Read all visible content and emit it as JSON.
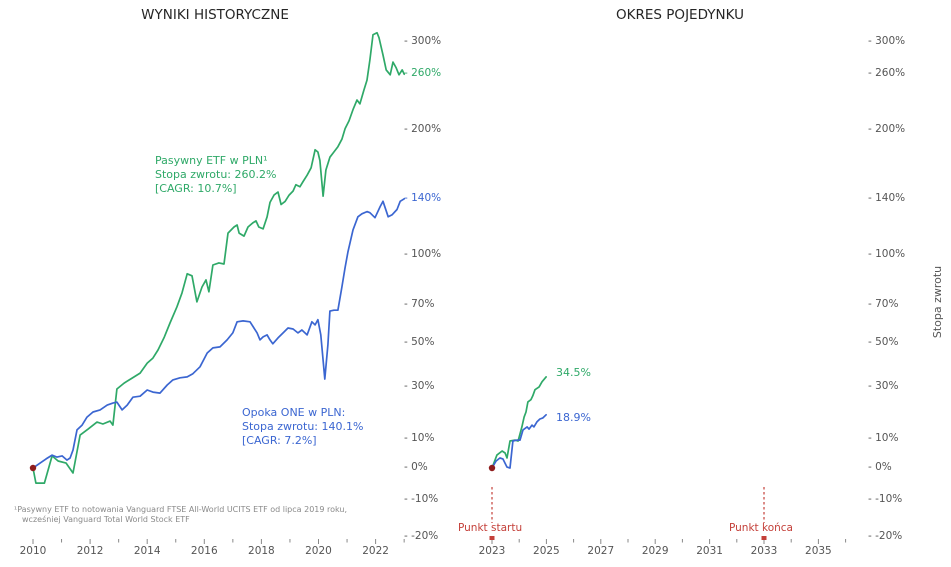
{
  "colors": {
    "green": "#2fa968",
    "blue": "#3b66d1",
    "red": "#c4403a",
    "dark_red_dot": "#8f1d1d",
    "tick_text": "#555555",
    "title_text": "#262626",
    "footnote_text": "#8a8a8a",
    "tick_mark": "#888888"
  },
  "right_axis_label": "Stopa zwrotu",
  "footnote": {
    "line1": "¹Pasywny ETF to notowania Vanguard FTSE All-World UCITS ETF od lipca 2019 roku,",
    "line2": "wcześniej Vanguard Total World Stock ETF"
  },
  "chart_data": [
    {
      "type": "line",
      "title": "WYNIKI HISTORYCZNE",
      "y_scale": "log(1+return)",
      "ylim_pct": [
        -20,
        320
      ],
      "x_major_ticks": [
        2010,
        2012,
        2014,
        2016,
        2018,
        2020,
        2022
      ],
      "x_minor_ticks": [
        2011,
        2013,
        2015,
        2017,
        2019,
        2021,
        2023
      ],
      "y_ticks": [
        {
          "pct": 300,
          "label": "300%",
          "color": "tick"
        },
        {
          "pct": 260,
          "label": "260%",
          "color": "green"
        },
        {
          "pct": 200,
          "label": "200%",
          "color": "tick"
        },
        {
          "pct": 140,
          "label": "140%",
          "color": "blue"
        },
        {
          "pct": 100,
          "label": "100%",
          "color": "tick"
        },
        {
          "pct": 70,
          "label": "70%",
          "color": "tick"
        },
        {
          "pct": 50,
          "label": "50%",
          "color": "tick"
        },
        {
          "pct": 30,
          "label": "30%",
          "color": "tick"
        },
        {
          "pct": 10,
          "label": "10%",
          "color": "tick"
        },
        {
          "pct": 0,
          "label": "0%",
          "color": "tick"
        },
        {
          "pct": -10,
          "label": "-10%",
          "color": "tick"
        },
        {
          "pct": -20,
          "label": "-20%",
          "color": "tick"
        }
      ],
      "start_marker": {
        "year": 2010.0,
        "pct": 0
      },
      "series": [
        {
          "name": "Pasywny ETF w PLN",
          "color": "green",
          "annotation": [
            "Pasywny ETF w PLN¹",
            "Stopa zwrotu: 260.2%",
            "[CAGR: 10.7%]"
          ],
          "total_return_pct": 260.2,
          "cagr_pct": 10.7,
          "points": [
            [
              2010.0,
              0
            ],
            [
              2010.1,
              -4.8
            ],
            [
              2010.4,
              -4.8
            ],
            [
              2010.67,
              4.0
            ],
            [
              2010.88,
              2.3
            ],
            [
              2011.16,
              1.6
            ],
            [
              2011.4,
              -1.6
            ],
            [
              2011.65,
              11.3
            ],
            [
              2011.93,
              13.5
            ],
            [
              2012.24,
              16.1
            ],
            [
              2012.45,
              15.4
            ],
            [
              2012.7,
              16.5
            ],
            [
              2012.8,
              15.0
            ],
            [
              2012.94,
              29.3
            ],
            [
              2013.19,
              31.8
            ],
            [
              2013.47,
              34.0
            ],
            [
              2013.75,
              36.2
            ],
            [
              2014.0,
              40.7
            ],
            [
              2014.2,
              43.0
            ],
            [
              2014.38,
              46.8
            ],
            [
              2014.6,
              53.1
            ],
            [
              2014.8,
              60.3
            ],
            [
              2015.04,
              68.9
            ],
            [
              2015.22,
              76.8
            ],
            [
              2015.4,
              88.1
            ],
            [
              2015.57,
              86.9
            ],
            [
              2015.74,
              71.7
            ],
            [
              2015.92,
              80.2
            ],
            [
              2016.06,
              84.4
            ],
            [
              2016.16,
              77.4
            ],
            [
              2016.3,
              93.6
            ],
            [
              2016.51,
              94.9
            ],
            [
              2016.69,
              94.2
            ],
            [
              2016.83,
              114.8
            ],
            [
              2017.04,
              119.1
            ],
            [
              2017.15,
              120.5
            ],
            [
              2017.22,
              114.8
            ],
            [
              2017.39,
              112.7
            ],
            [
              2017.53,
              119.1
            ],
            [
              2017.7,
              122.0
            ],
            [
              2017.81,
              123.5
            ],
            [
              2017.91,
              119.1
            ],
            [
              2018.06,
              117.7
            ],
            [
              2018.2,
              126.5
            ],
            [
              2018.3,
              137.3
            ],
            [
              2018.44,
              143.0
            ],
            [
              2018.58,
              145.5
            ],
            [
              2018.69,
              135.7
            ],
            [
              2018.83,
              138.1
            ],
            [
              2018.97,
              143.0
            ],
            [
              2019.11,
              146.3
            ],
            [
              2019.21,
              151.4
            ],
            [
              2019.35,
              149.7
            ],
            [
              2019.46,
              154.0
            ],
            [
              2019.6,
              159.3
            ],
            [
              2019.74,
              165.6
            ],
            [
              2019.88,
              181.6
            ],
            [
              2019.98,
              179.6
            ],
            [
              2020.05,
              172.0
            ],
            [
              2020.16,
              142.2
            ],
            [
              2020.26,
              163.7
            ],
            [
              2020.4,
              174.9
            ],
            [
              2020.54,
              179.6
            ],
            [
              2020.68,
              184.5
            ],
            [
              2020.82,
              191.5
            ],
            [
              2020.93,
              201.8
            ],
            [
              2021.07,
              209.4
            ],
            [
              2021.21,
              221.0
            ],
            [
              2021.35,
              231.2
            ],
            [
              2021.45,
              227.0
            ],
            [
              2021.59,
              242.0
            ],
            [
              2021.7,
              253.3
            ],
            [
              2021.8,
              277.3
            ],
            [
              2021.91,
              309.6
            ],
            [
              2022.05,
              312.3
            ],
            [
              2022.12,
              305.6
            ],
            [
              2022.26,
              283.4
            ],
            [
              2022.37,
              265.3
            ],
            [
              2022.51,
              259.5
            ],
            [
              2022.61,
              274.7
            ],
            [
              2022.72,
              267.6
            ],
            [
              2022.82,
              259.5
            ],
            [
              2022.93,
              265.3
            ],
            [
              2023.0,
              260.2
            ]
          ]
        },
        {
          "name": "Opoka ONE w PLN",
          "color": "blue",
          "annotation": [
            "Opoka ONE w PLN:",
            "Stopa zwrotu: 140.1%",
            "[CAGR: 7.2%]"
          ],
          "total_return_pct": 140.1,
          "cagr_pct": 7.2,
          "points": [
            [
              2010.0,
              0
            ],
            [
              2010.25,
              1.6
            ],
            [
              2010.46,
              3.0
            ],
            [
              2010.67,
              4.3
            ],
            [
              2010.84,
              3.6
            ],
            [
              2011.02,
              4.0
            ],
            [
              2011.19,
              2.6
            ],
            [
              2011.3,
              3.3
            ],
            [
              2011.4,
              6.0
            ],
            [
              2011.54,
              13.2
            ],
            [
              2011.72,
              15.0
            ],
            [
              2011.89,
              18.0
            ],
            [
              2012.1,
              20.0
            ],
            [
              2012.35,
              20.8
            ],
            [
              2012.6,
              22.7
            ],
            [
              2012.8,
              23.5
            ],
            [
              2012.94,
              23.9
            ],
            [
              2013.12,
              20.8
            ],
            [
              2013.3,
              22.7
            ],
            [
              2013.5,
              25.9
            ],
            [
              2013.75,
              26.3
            ],
            [
              2014.0,
              28.9
            ],
            [
              2014.2,
              28.0
            ],
            [
              2014.45,
              27.6
            ],
            [
              2014.7,
              31.0
            ],
            [
              2014.9,
              33.2
            ],
            [
              2015.15,
              34.1
            ],
            [
              2015.4,
              34.5
            ],
            [
              2015.6,
              35.9
            ],
            [
              2015.85,
              39.0
            ],
            [
              2016.1,
              45.4
            ],
            [
              2016.3,
              47.8
            ],
            [
              2016.55,
              48.3
            ],
            [
              2016.8,
              51.7
            ],
            [
              2017.0,
              55.2
            ],
            [
              2017.15,
              60.9
            ],
            [
              2017.36,
              61.4
            ],
            [
              2017.6,
              60.9
            ],
            [
              2017.85,
              55.2
            ],
            [
              2017.95,
              51.7
            ],
            [
              2018.06,
              53.2
            ],
            [
              2018.2,
              54.2
            ],
            [
              2018.3,
              51.7
            ],
            [
              2018.4,
              49.8
            ],
            [
              2018.58,
              52.7
            ],
            [
              2018.76,
              55.2
            ],
            [
              2018.93,
              57.7
            ],
            [
              2019.11,
              57.2
            ],
            [
              2019.28,
              55.2
            ],
            [
              2019.42,
              56.7
            ],
            [
              2019.6,
              54.2
            ],
            [
              2019.77,
              60.9
            ],
            [
              2019.88,
              59.3
            ],
            [
              2019.98,
              62.0
            ],
            [
              2020.08,
              54.2
            ],
            [
              2020.22,
              33.6
            ],
            [
              2020.33,
              49.3
            ],
            [
              2020.4,
              66.6
            ],
            [
              2020.54,
              67.1
            ],
            [
              2020.68,
              67.1
            ],
            [
              2020.82,
              80.2
            ],
            [
              2020.93,
              92.0
            ],
            [
              2021.03,
              101.9
            ],
            [
              2021.21,
              117.0
            ],
            [
              2021.38,
              126.5
            ],
            [
              2021.52,
              128.7
            ],
            [
              2021.7,
              130.3
            ],
            [
              2021.8,
              129.5
            ],
            [
              2021.98,
              125.8
            ],
            [
              2022.16,
              134.2
            ],
            [
              2022.26,
              138.2
            ],
            [
              2022.44,
              126.5
            ],
            [
              2022.58,
              128.0
            ],
            [
              2022.75,
              131.9
            ],
            [
              2022.86,
              138.2
            ],
            [
              2023.0,
              140.1
            ]
          ]
        }
      ]
    },
    {
      "type": "line",
      "title": "OKRES POJEDYNKU",
      "y_scale": "log(1+return)",
      "ylim_pct": [
        -20,
        320
      ],
      "x_major_ticks": [
        2023,
        2025,
        2027,
        2029,
        2031,
        2033,
        2035
      ],
      "x_minor_ticks": [
        2024,
        2026,
        2028,
        2030,
        2032,
        2034,
        2036
      ],
      "y_ticks": [
        {
          "pct": 300,
          "label": "300%",
          "color": "tick"
        },
        {
          "pct": 260,
          "label": "260%",
          "color": "tick"
        },
        {
          "pct": 200,
          "label": "200%",
          "color": "tick"
        },
        {
          "pct": 140,
          "label": "140%",
          "color": "tick"
        },
        {
          "pct": 100,
          "label": "100%",
          "color": "tick"
        },
        {
          "pct": 70,
          "label": "70%",
          "color": "tick"
        },
        {
          "pct": 50,
          "label": "50%",
          "color": "tick"
        },
        {
          "pct": 30,
          "label": "30%",
          "color": "tick"
        },
        {
          "pct": 10,
          "label": "10%",
          "color": "tick"
        },
        {
          "pct": 0,
          "label": "0%",
          "color": "tick"
        },
        {
          "pct": -10,
          "label": "-10%",
          "color": "tick"
        },
        {
          "pct": -20,
          "label": "-20%",
          "color": "tick"
        }
      ],
      "start_marker": {
        "year": 2023.0,
        "pct": 0
      },
      "markers": [
        {
          "label": "Punkt startu",
          "year": 2023
        },
        {
          "label": "Punkt końca",
          "year": 2033
        }
      ],
      "series": [
        {
          "name": "Pasywny ETF w PLN",
          "color": "green",
          "end_label": "34.5%",
          "current_return_pct": 34.5,
          "points": [
            [
              2023.0,
              0
            ],
            [
              2023.18,
              4.3
            ],
            [
              2023.37,
              5.7
            ],
            [
              2023.48,
              5.0
            ],
            [
              2023.55,
              3.3
            ],
            [
              2023.66,
              9.2
            ],
            [
              2023.85,
              9.5
            ],
            [
              2023.96,
              9.2
            ],
            [
              2024.1,
              14.3
            ],
            [
              2024.18,
              18.0
            ],
            [
              2024.25,
              20.0
            ],
            [
              2024.32,
              24.0
            ],
            [
              2024.43,
              24.9
            ],
            [
              2024.5,
              26.5
            ],
            [
              2024.58,
              29.0
            ],
            [
              2024.73,
              30.2
            ],
            [
              2024.84,
              32.4
            ],
            [
              2024.99,
              34.5
            ]
          ]
        },
        {
          "name": "Opoka ONE w PLN",
          "color": "blue",
          "end_label": "18.9%",
          "current_return_pct": 18.9,
          "points": [
            [
              2023.0,
              0
            ],
            [
              2023.15,
              2.3
            ],
            [
              2023.29,
              3.3
            ],
            [
              2023.4,
              3.0
            ],
            [
              2023.55,
              0.3
            ],
            [
              2023.66,
              0.0
            ],
            [
              2023.77,
              9.2
            ],
            [
              2023.92,
              9.5
            ],
            [
              2024.03,
              9.5
            ],
            [
              2024.14,
              13.2
            ],
            [
              2024.29,
              14.3
            ],
            [
              2024.36,
              13.5
            ],
            [
              2024.47,
              15.0
            ],
            [
              2024.54,
              14.3
            ],
            [
              2024.65,
              16.2
            ],
            [
              2024.76,
              17.3
            ],
            [
              2024.87,
              17.7
            ],
            [
              2024.99,
              18.9
            ]
          ]
        }
      ]
    }
  ]
}
